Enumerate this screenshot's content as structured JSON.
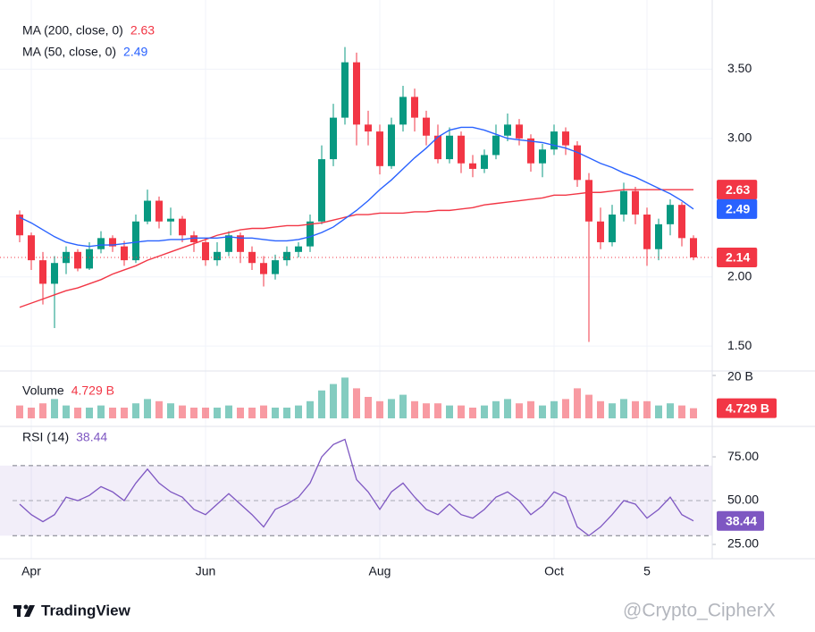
{
  "chart_data": [
    {
      "type": "candlestick",
      "categories": [
        null,
        "Apr",
        null,
        null,
        null,
        null,
        null,
        null,
        null,
        null,
        null,
        null,
        null,
        null,
        null,
        null,
        "Jun",
        null,
        null,
        null,
        null,
        null,
        null,
        null,
        null,
        null,
        null,
        null,
        null,
        null,
        null,
        "Aug",
        null,
        null,
        null,
        null,
        null,
        null,
        null,
        null,
        null,
        null,
        null,
        null,
        null,
        null,
        "Oct",
        null,
        null,
        null,
        null,
        null,
        null,
        null,
        "5",
        null,
        null,
        null,
        null
      ],
      "open": [
        2.45,
        2.3,
        2.12,
        1.95,
        2.1,
        2.18,
        2.06,
        2.2,
        2.28,
        2.22,
        2.12,
        2.4,
        2.55,
        2.4,
        2.42,
        2.3,
        2.25,
        2.12,
        2.18,
        2.3,
        2.18,
        2.1,
        2.02,
        2.12,
        2.18,
        2.22,
        2.4,
        2.85,
        3.15,
        3.55,
        3.1,
        3.05,
        2.8,
        3.1,
        3.3,
        3.15,
        3.02,
        2.85,
        3.02,
        2.82,
        2.78,
        2.88,
        3.02,
        3.1,
        3.0,
        2.82,
        2.92,
        3.05,
        2.95,
        2.7,
        2.4,
        2.25,
        2.45,
        2.62,
        2.45,
        2.2,
        2.38,
        2.52,
        2.28
      ],
      "high": [
        2.48,
        2.32,
        2.18,
        2.15,
        2.22,
        2.2,
        2.25,
        2.33,
        2.3,
        2.26,
        2.45,
        2.63,
        2.58,
        2.5,
        2.44,
        2.33,
        2.28,
        2.25,
        2.33,
        2.32,
        2.22,
        2.15,
        2.16,
        2.22,
        2.25,
        2.45,
        2.95,
        3.25,
        3.66,
        3.62,
        3.2,
        3.1,
        3.15,
        3.38,
        3.36,
        3.2,
        3.1,
        3.08,
        3.05,
        2.88,
        2.92,
        3.1,
        3.18,
        3.14,
        3.03,
        2.96,
        3.1,
        3.08,
        2.98,
        2.75,
        2.5,
        2.52,
        2.68,
        2.65,
        2.5,
        2.42,
        2.56,
        2.54,
        2.3
      ],
      "low": [
        2.25,
        2.05,
        1.8,
        1.63,
        2.02,
        2.04,
        2.05,
        2.17,
        2.18,
        2.08,
        2.1,
        2.38,
        2.35,
        2.3,
        2.25,
        2.18,
        2.08,
        2.08,
        2.15,
        2.1,
        2.05,
        1.93,
        1.98,
        2.08,
        2.14,
        2.18,
        2.38,
        2.8,
        3.1,
        2.95,
        2.95,
        2.74,
        2.78,
        3.05,
        3.05,
        2.95,
        2.82,
        2.82,
        2.75,
        2.72,
        2.75,
        2.85,
        2.98,
        2.95,
        2.76,
        2.72,
        2.88,
        2.88,
        2.65,
        1.53,
        2.2,
        2.22,
        2.4,
        2.38,
        2.08,
        2.12,
        2.3,
        2.22,
        2.12
      ],
      "close": [
        2.3,
        2.12,
        1.95,
        2.1,
        2.18,
        2.06,
        2.2,
        2.28,
        2.22,
        2.12,
        2.4,
        2.55,
        2.4,
        2.42,
        2.3,
        2.25,
        2.12,
        2.18,
        2.3,
        2.18,
        2.1,
        2.02,
        2.12,
        2.18,
        2.22,
        2.4,
        2.85,
        3.15,
        3.55,
        3.1,
        3.05,
        2.8,
        3.1,
        3.3,
        3.15,
        3.02,
        2.85,
        3.02,
        2.82,
        2.78,
        2.88,
        3.02,
        3.1,
        3.0,
        2.82,
        2.92,
        3.05,
        2.95,
        2.7,
        2.4,
        2.25,
        2.45,
        2.62,
        2.45,
        2.2,
        2.38,
        2.52,
        2.28,
        2.14
      ],
      "up_color": "#089981",
      "down_color": "#f23645",
      "series": [
        {
          "name": "MA (200, close, 0)",
          "color": "#f23645",
          "values": [
            1.78,
            1.81,
            1.84,
            1.87,
            1.9,
            1.92,
            1.95,
            1.98,
            2.02,
            2.05,
            2.08,
            2.12,
            2.15,
            2.18,
            2.21,
            2.24,
            2.27,
            2.3,
            2.32,
            2.34,
            2.35,
            2.35,
            2.36,
            2.37,
            2.37,
            2.38,
            2.39,
            2.41,
            2.43,
            2.45,
            2.45,
            2.46,
            2.46,
            2.46,
            2.47,
            2.47,
            2.48,
            2.48,
            2.49,
            2.5,
            2.52,
            2.53,
            2.54,
            2.55,
            2.56,
            2.57,
            2.59,
            2.59,
            2.6,
            2.61,
            2.61,
            2.62,
            2.63,
            2.63,
            2.63,
            2.63,
            2.63,
            2.63,
            2.63
          ]
        },
        {
          "name": "MA (50, close, 0)",
          "color": "#2962ff",
          "values": [
            2.43,
            2.39,
            2.34,
            2.29,
            2.25,
            2.23,
            2.22,
            2.23,
            2.23,
            2.24,
            2.25,
            2.26,
            2.26,
            2.27,
            2.27,
            2.28,
            2.28,
            2.28,
            2.29,
            2.28,
            2.28,
            2.27,
            2.26,
            2.26,
            2.27,
            2.29,
            2.32,
            2.36,
            2.42,
            2.48,
            2.55,
            2.63,
            2.7,
            2.78,
            2.86,
            2.93,
            3.01,
            3.06,
            3.08,
            3.08,
            3.06,
            3.03,
            3.0,
            2.99,
            2.98,
            2.97,
            2.95,
            2.93,
            2.9,
            2.86,
            2.82,
            2.79,
            2.75,
            2.72,
            2.68,
            2.64,
            2.6,
            2.55,
            2.49
          ]
        }
      ],
      "ylim": [
        1.32,
        4.0
      ],
      "yticks": [
        {
          "value": 1.5,
          "label": "1.50"
        },
        {
          "value": 2,
          "label": "2.00"
        },
        {
          "value": 3,
          "label": "3.00"
        },
        {
          "value": 3.5,
          "label": "3.50"
        }
      ],
      "grid": true
    },
    {
      "type": "volume",
      "title": "Volume",
      "values": [
        6,
        5,
        7,
        9,
        6,
        5,
        5,
        6,
        5,
        5,
        7,
        9,
        8,
        7,
        6,
        5,
        5,
        5,
        6,
        5,
        5,
        6,
        5,
        5,
        6,
        8,
        13,
        16,
        19,
        14,
        10,
        8,
        9,
        11,
        8,
        7,
        7,
        6,
        6,
        5,
        6,
        8,
        9,
        7,
        8,
        6,
        8,
        9,
        14,
        11,
        8,
        7,
        9,
        8,
        8,
        6,
        7,
        6,
        4.729
      ],
      "value_labels": [
        null,
        null,
        null,
        null,
        null,
        null,
        null,
        null,
        null,
        null,
        null,
        null,
        null,
        null,
        null,
        null,
        null,
        null,
        null,
        null,
        null,
        null,
        null,
        null,
        null,
        null,
        null,
        null,
        null,
        null,
        null,
        null,
        null,
        null,
        null,
        null,
        null,
        null,
        null,
        null,
        null,
        null,
        null,
        null,
        null,
        null,
        null,
        null,
        null,
        null,
        null,
        null,
        null,
        null,
        null,
        null,
        null,
        null,
        "4.729 B"
      ],
      "ylim": [
        0,
        20.83
      ],
      "yticks": [
        {
          "value": 20,
          "label": "20 B"
        }
      ]
    },
    {
      "type": "line",
      "title": "RSI (14)",
      "color": "#7e57c2",
      "values": [
        48,
        42,
        38,
        42,
        52,
        50,
        53,
        58,
        55,
        50,
        60,
        68,
        60,
        55,
        52,
        45,
        42,
        48,
        54,
        48,
        42,
        35,
        45,
        48,
        52,
        60,
        75,
        82,
        85,
        62,
        55,
        45,
        55,
        60,
        52,
        45,
        42,
        48,
        42,
        40,
        45,
        52,
        55,
        50,
        42,
        47,
        55,
        52,
        35,
        30,
        35,
        42,
        50,
        48,
        40,
        45,
        52,
        42,
        38.44
      ],
      "band": [
        30,
        70
      ],
      "midline": 50,
      "ylim": [
        19.4,
        88.3
      ],
      "yticks": [
        {
          "value": 25,
          "label": "25.00"
        },
        {
          "value": 50,
          "label": "50.00"
        },
        {
          "value": 75,
          "label": "75.00"
        }
      ]
    }
  ],
  "brand": "TradingView",
  "watermark": "@Crypto_CipherX"
}
